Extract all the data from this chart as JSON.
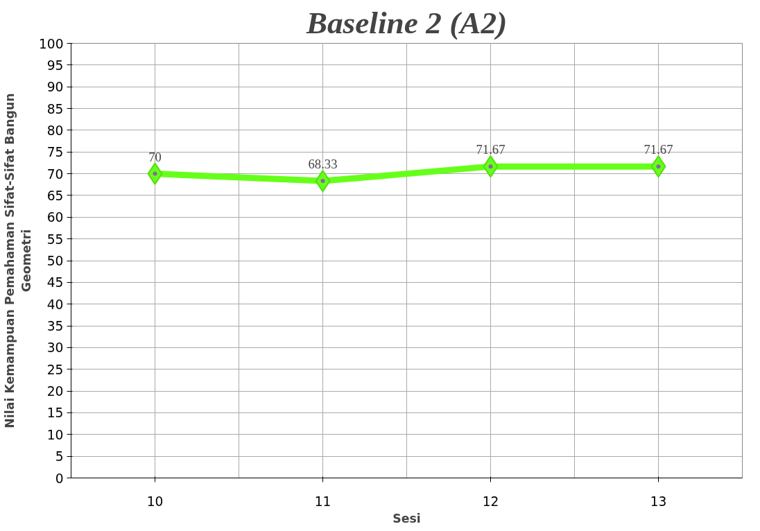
{
  "chart_data": {
    "type": "line",
    "title": "Baseline 2 (A2)",
    "xlabel": "Sesi",
    "ylabel": "Nilai Kemampuan Pemahaman Sifat-Sifat Bangun Geometri",
    "categories": [
      "10",
      "11",
      "12",
      "13"
    ],
    "series": [
      {
        "color": "#66ff1a",
        "values": [
          70,
          68.33,
          71.67,
          71.67
        ]
      }
    ],
    "ylim": [
      0,
      100
    ],
    "yticks": [
      0,
      5,
      10,
      15,
      20,
      25,
      30,
      35,
      40,
      45,
      50,
      55,
      60,
      65,
      70,
      75,
      80,
      85,
      90,
      95,
      100
    ],
    "grid": true,
    "marker": "diamond",
    "line_style": "solid",
    "data_labels": true
  }
}
